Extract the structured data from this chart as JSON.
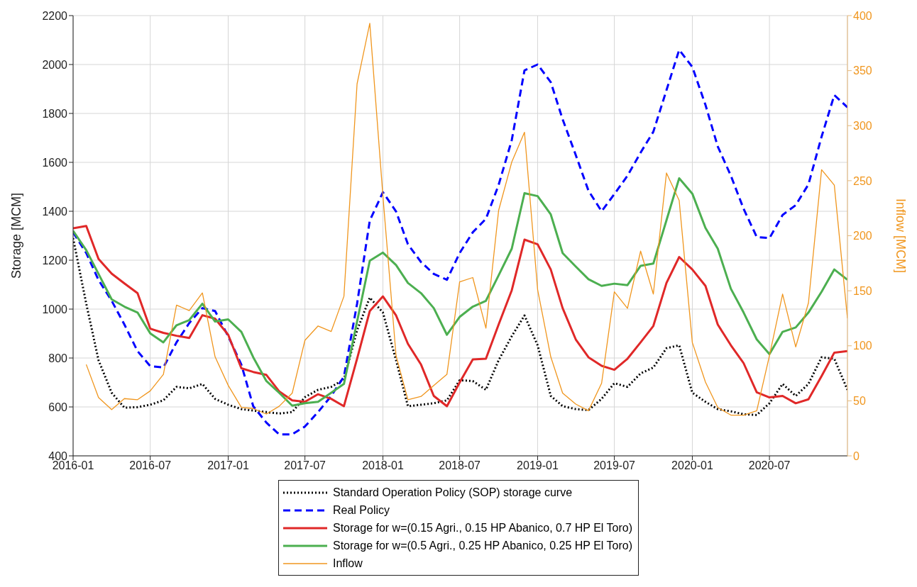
{
  "chart_data": {
    "type": "line",
    "x": [
      "2016-01",
      "2016-02",
      "2016-03",
      "2016-04",
      "2016-05",
      "2016-06",
      "2016-07",
      "2016-08",
      "2016-09",
      "2016-10",
      "2016-11",
      "2016-12",
      "2017-01",
      "2017-02",
      "2017-03",
      "2017-04",
      "2017-05",
      "2017-06",
      "2017-07",
      "2017-08",
      "2017-09",
      "2017-10",
      "2017-11",
      "2017-12",
      "2018-01",
      "2018-02",
      "2018-03",
      "2018-04",
      "2018-05",
      "2018-06",
      "2018-07",
      "2018-08",
      "2018-09",
      "2018-10",
      "2018-11",
      "2018-12",
      "2019-01",
      "2019-02",
      "2019-03",
      "2019-04",
      "2019-05",
      "2019-06",
      "2019-07",
      "2019-08",
      "2019-09",
      "2019-10",
      "2019-11",
      "2019-12",
      "2020-01",
      "2020-02",
      "2020-03",
      "2020-04",
      "2020-05",
      "2020-06",
      "2020-07",
      "2020-08",
      "2020-09",
      "2020-10",
      "2020-11",
      "2020-12",
      "2021-01"
    ],
    "series": [
      {
        "name": "Standard Operation Policy (SOP) storage curve",
        "color": "#000000",
        "line_style": "dotted",
        "values": [
          1290,
          1022,
          791,
          658,
          597,
          599,
          609,
          627,
          682,
          676,
          694,
          633,
          609,
          591,
          585,
          579,
          573,
          579,
          640,
          670,
          682,
          712,
          913,
          1047,
          986,
          791,
          603,
          609,
          615,
          627,
          709,
          706,
          670,
          791,
          889,
          974,
          852,
          645,
          603,
          591,
          587,
          633,
          697,
          682,
          737,
          761,
          840,
          852,
          658,
          621,
          591,
          582,
          570,
          567,
          615,
          694,
          645,
          694,
          803,
          797,
          670
        ]
      },
      {
        "name": "Real Policy",
        "color": "#0000ff",
        "line_style": "dashed",
        "values": [
          1314,
          1229,
          1119,
          1034,
          937,
          828,
          767,
          761,
          864,
          943,
          1004,
          992,
          889,
          773,
          603,
          536,
          488,
          488,
          520,
          579,
          645,
          724,
          1022,
          1362,
          1478,
          1399,
          1265,
          1192,
          1144,
          1120,
          1229,
          1314,
          1369,
          1508,
          1691,
          1976,
          2000,
          1928,
          1776,
          1630,
          1484,
          1400,
          1470,
          1545,
          1640,
          1725,
          1895,
          2060,
          1990,
          1835,
          1665,
          1545,
          1410,
          1295,
          1290,
          1385,
          1425,
          1510,
          1705,
          1875,
          1825
        ]
      },
      {
        "name": "Storage for w=(0.15 Agri., 0.15 HP Abanico, 0.7 HP El Toro)",
        "color": "#e02828",
        "line_style": "solid",
        "values": [
          1330,
          1340,
          1205,
          1145,
          1105,
          1065,
          920,
          903,
          891,
          882,
          975,
          961,
          895,
          758,
          743,
          731,
          664,
          627,
          621,
          652,
          633,
          603,
          797,
          992,
          1052,
          974,
          858,
          773,
          645,
          603,
          700,
          794,
          797,
          937,
          1077,
          1284,
          1265,
          1162,
          1004,
          876,
          803,
          768,
          752,
          797,
          864,
          931,
          1107,
          1213,
          1162,
          1095,
          937,
          852,
          779,
          660,
          639,
          645,
          615,
          631,
          726,
          822,
          828
        ]
      },
      {
        "name": "Storage for w=(0.5 Agri., 0.25 HP Abanico, 0.25 HP El Toro)",
        "color": "#4caf50",
        "line_style": "solid",
        "values": [
          1320,
          1241,
          1144,
          1040,
          1010,
          986,
          901,
          864,
          934,
          955,
          1022,
          949,
          958,
          907,
          803,
          706,
          658,
          605,
          615,
          621,
          658,
          694,
          949,
          1198,
          1231,
          1180,
          1107,
          1065,
          1004,
          895,
          968,
          1010,
          1034,
          1138,
          1247,
          1474,
          1462,
          1387,
          1229,
          1174,
          1122,
          1095,
          1104,
          1098,
          1177,
          1186,
          1363,
          1535,
          1472,
          1332,
          1247,
          1083,
          986,
          876,
          816,
          907,
          925,
          986,
          1071,
          1162,
          1120
        ]
      },
      {
        "name": "Inflow",
        "color": "#f0961e",
        "line_style": "solid",
        "axis": "y2",
        "values": [
          null,
          83,
          53,
          42,
          52,
          51,
          59,
          74,
          137,
          132,
          148,
          90,
          64,
          44,
          43,
          38,
          45,
          57,
          105,
          118,
          113,
          145,
          338,
          393,
          236,
          91,
          51,
          54,
          64,
          74,
          158,
          162,
          116,
          223,
          267,
          294,
          151,
          90,
          57,
          47,
          41,
          66,
          149,
          134,
          186,
          147,
          257,
          232,
          103,
          67,
          44,
          37,
          37,
          41,
          91,
          147,
          99,
          139,
          260,
          246,
          125
        ]
      }
    ],
    "xlim": [
      "2016-01",
      "2021-01"
    ],
    "xticks": [
      "2016-01",
      "2016-07",
      "2017-01",
      "2017-07",
      "2018-01",
      "2018-07",
      "2019-01",
      "2019-07",
      "2020-01",
      "2020-07"
    ],
    "ylim": [
      400,
      2200
    ],
    "yticks": [
      400,
      600,
      800,
      1000,
      1200,
      1400,
      1600,
      1800,
      2000,
      2200
    ],
    "y2lim": [
      0,
      400
    ],
    "y2ticks": [
      0,
      50,
      100,
      150,
      200,
      250,
      300,
      350,
      400
    ],
    "ylabel": "Storage [MCM]",
    "y2label": "Inflow [MCM]",
    "grid": true,
    "legend": "bottom",
    "marker": "none"
  }
}
